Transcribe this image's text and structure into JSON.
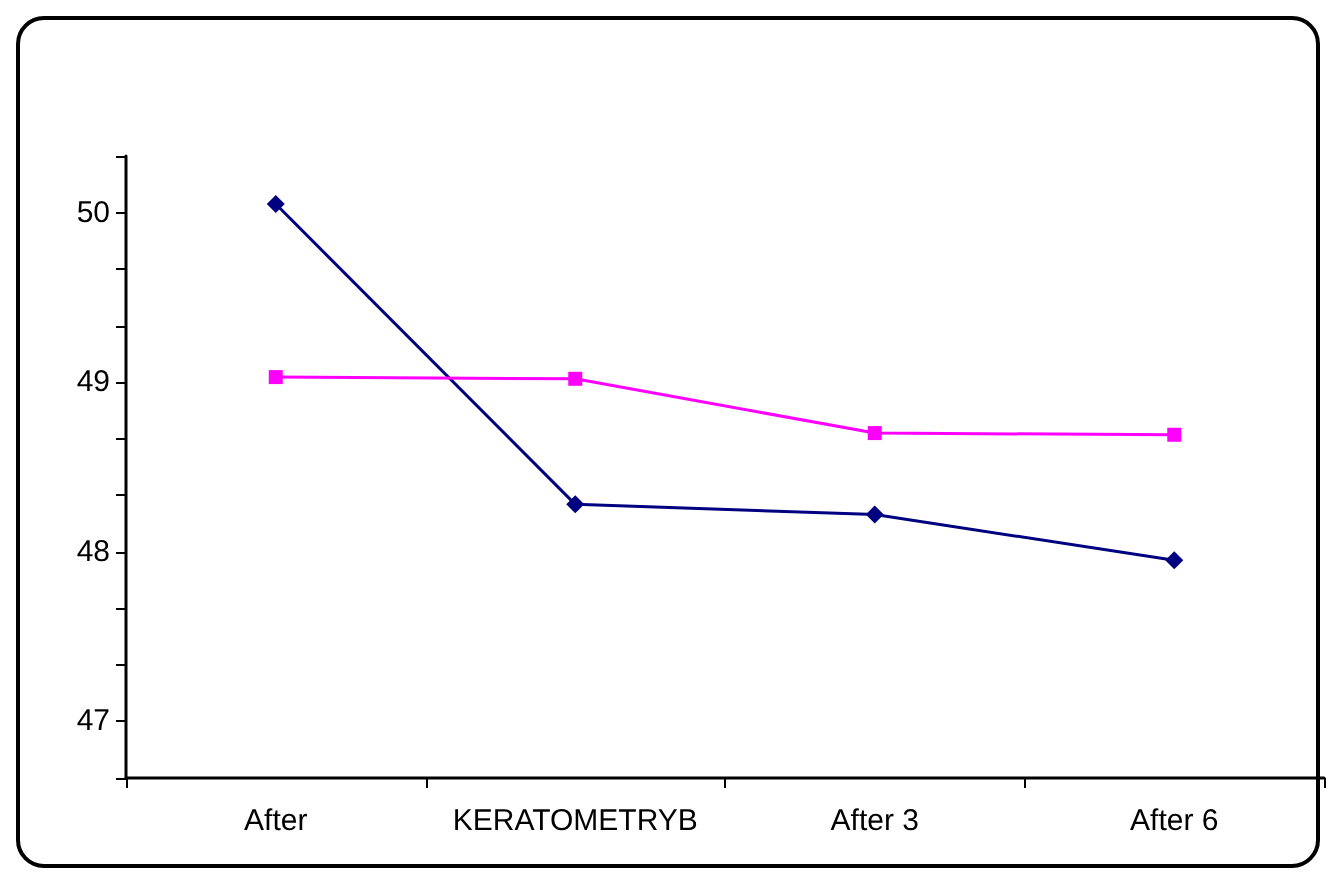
{
  "chart_data": {
    "type": "line",
    "categories": [
      "After",
      "KERATOMETRYB",
      "After 3",
      "After 6"
    ],
    "series": [
      {
        "color": "#000080",
        "marker": "diamond",
        "values": [
          50.05,
          48.28,
          48.22,
          47.95
        ]
      },
      {
        "color": "#ff00ff",
        "marker": "square",
        "values": [
          49.03,
          49.02,
          48.7,
          48.69
        ]
      }
    ],
    "ylim": [
      46.6667,
      50.3333
    ],
    "yticks": [
      {
        "value": 46.6667,
        "label": null
      },
      47,
      {
        "value": 47.3333,
        "label": null
      },
      {
        "value": 47.6667,
        "label": null
      },
      48,
      {
        "value": 48.3333,
        "label": null
      },
      {
        "value": 48.6667,
        "label": null
      },
      49,
      {
        "value": 49.3333,
        "label": null
      },
      {
        "value": 49.6667,
        "label": null
      },
      50,
      {
        "value": 50.3333,
        "label": null
      }
    ],
    "grid": false,
    "line_style": "solid"
  }
}
